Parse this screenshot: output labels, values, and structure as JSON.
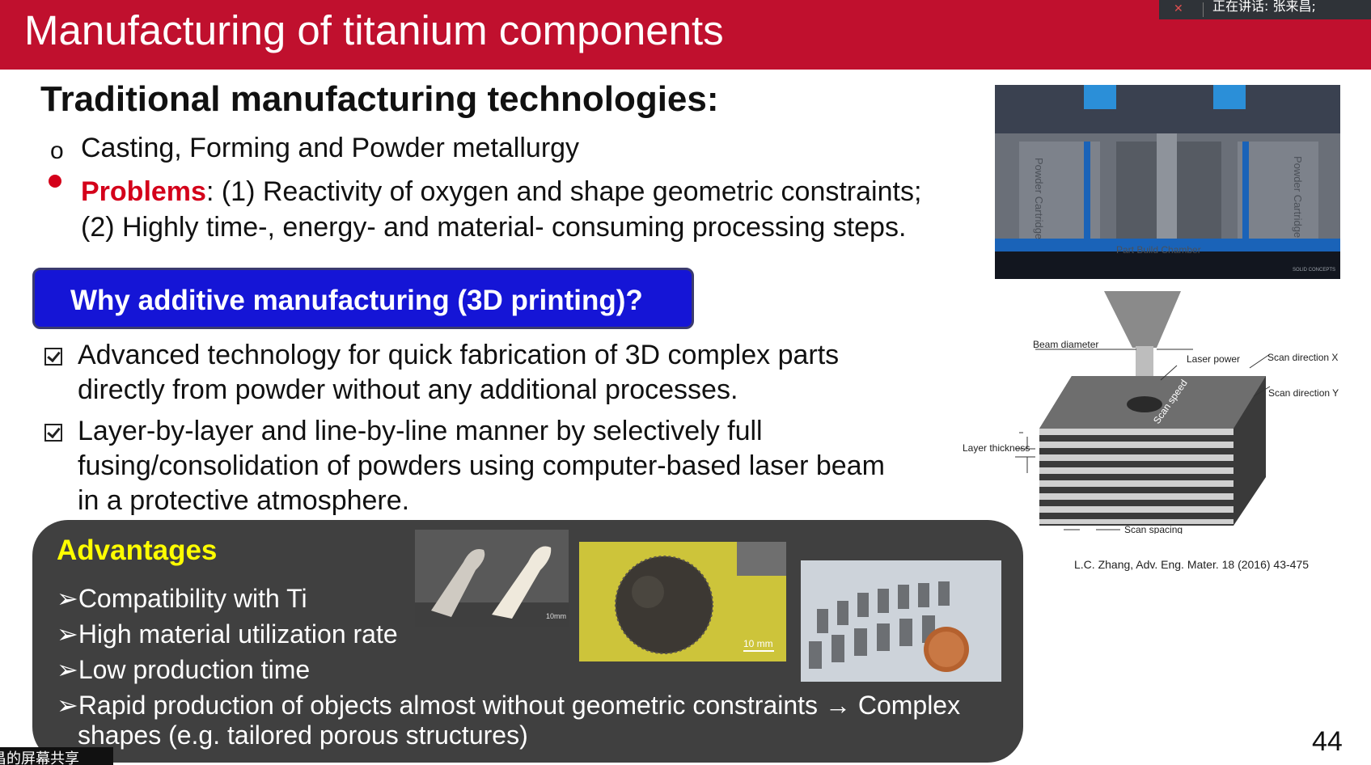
{
  "slide": {
    "title": "Manufacturing of titanium components",
    "page_number": "44"
  },
  "overlay": {
    "speaker_text": "正在讲话: 张来昌;",
    "share_text": "昌的屏幕共享"
  },
  "traditional": {
    "heading": "Traditional manufacturing technologies:",
    "bullet1": "Casting, Forming and Powder metallurgy",
    "problems_label": "Problems",
    "problems_text1": ": (1) Reactivity of oxygen and shape geometric constraints;",
    "problems_text2": "(2) Highly time-, energy- and material- consuming processing steps."
  },
  "why_box": {
    "label": "Why additive manufacturing (3D printing)?"
  },
  "checks": [
    {
      "line1": "Advanced technology for quick fabrication of 3D complex parts",
      "line2": "directly from powder without any additional processes."
    },
    {
      "line1": "Layer-by-layer and line-by-line manner by selectively full",
      "line2": "fusing/consolidation of powders using computer-based laser beam",
      "line3": "in a protective atmosphere."
    }
  ],
  "advantages": {
    "heading": "Advantages",
    "items": [
      "➢Compatibility with Ti",
      "➢High material utilization rate",
      "➢Low production time",
      "➢Rapid production of objects almost without geometric constraints → Complex",
      "shapes (e.g. tailored porous structures)"
    ]
  },
  "printer_image": {
    "labels": {
      "powder_left": "Powder Cartridge",
      "powder_right": "Powder Cartridge",
      "chamber": "Part Build Chamber",
      "brand": "SOLID CONCEPTS"
    }
  },
  "photos": {
    "bone_scale": "10mm",
    "sphere_scale": "10 mm"
  },
  "diagram": {
    "labels": {
      "beam_diameter": "Beam diameter",
      "laser_power": "Laser power",
      "scan_x": "Scan direction X",
      "scan_y": "Scan direction Y",
      "scan_speed": "Scan speed",
      "layer_thickness": "Layer thickness",
      "scan_spacing": "Scan spacing"
    },
    "citation": "L.C. Zhang, Adv. Eng. Mater. 18 (2016) 43-475"
  }
}
